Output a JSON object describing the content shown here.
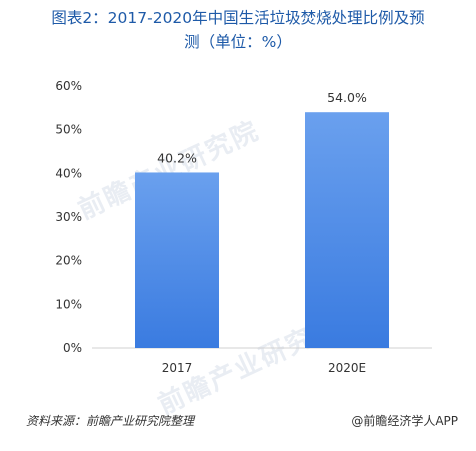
{
  "title": {
    "line1": "图表2：2017-2020年中国生活垃圾焚烧处理比例及预",
    "line2": "测（单位：%）"
  },
  "chart_data": {
    "type": "bar",
    "categories": [
      "2017",
      "2020E"
    ],
    "values": [
      40.2,
      54.0
    ],
    "data_labels": [
      "40.2%",
      "54.0%"
    ],
    "ylim": [
      0,
      60
    ],
    "yticks": [
      "0%",
      "10%",
      "20%",
      "30%",
      "40%",
      "50%",
      "60%"
    ],
    "grid": false,
    "bar_color": "#3a7be0",
    "bar_color_light": "#6aa0ee"
  },
  "footer": {
    "source": "资料来源：前瞻产业研究院整理",
    "credit": "@前瞻经济学人APP"
  },
  "watermark": {
    "text": "前瞻产业研究院"
  }
}
